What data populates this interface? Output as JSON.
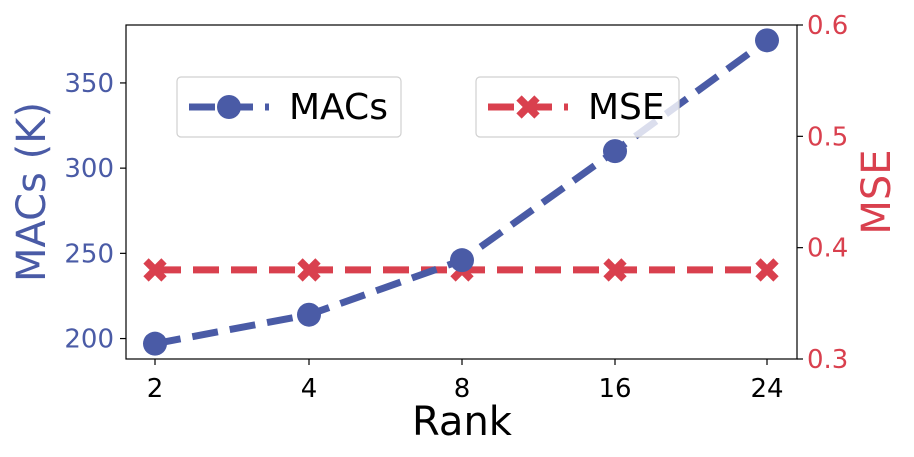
{
  "chart_data": {
    "type": "line",
    "x_categories": [
      "2",
      "4",
      "8",
      "16",
      "24"
    ],
    "xlabel": "Rank",
    "series": [
      {
        "name": "MACs",
        "axis": "left",
        "values": [
          197,
          214,
          246,
          310,
          375
        ],
        "color": "#4a5ba6",
        "marker": "circle",
        "linestyle": "dashed"
      },
      {
        "name": "MSE",
        "axis": "right",
        "values": [
          0.38,
          0.38,
          0.38,
          0.38,
          0.38
        ],
        "color": "#d9404e",
        "marker": "x",
        "linestyle": "dashed"
      }
    ],
    "y_left": {
      "label": "MACs (K)",
      "ticks": [
        200,
        250,
        300,
        350
      ],
      "range": [
        188,
        384
      ],
      "color": "#4a5ba6"
    },
    "y_right": {
      "label": "MSE",
      "ticks": [
        "0.3",
        "0.4",
        "0.5",
        "0.6"
      ],
      "range": [
        0.3,
        0.6
      ],
      "color": "#d9404e"
    },
    "grid": false,
    "legend": {
      "placement": "top-center",
      "entries": [
        "MACs",
        "MSE"
      ]
    }
  }
}
